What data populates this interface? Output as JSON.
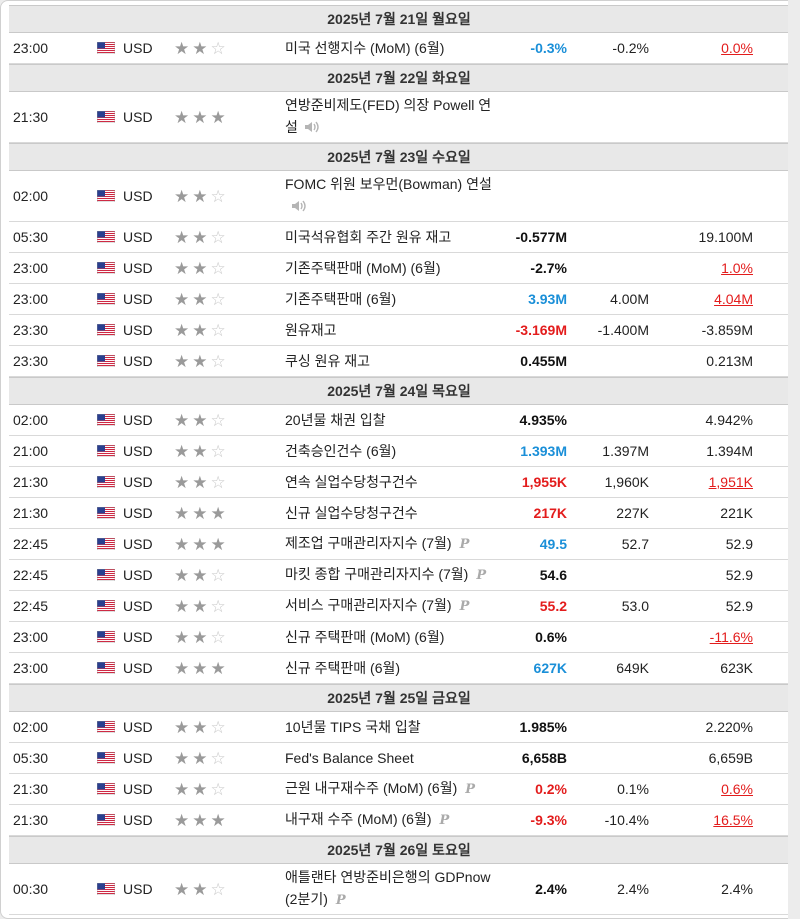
{
  "colors": {
    "negative": "#e31c1c",
    "positive": "#1a8fd8",
    "neutral": "#111111",
    "day_header_bg": "#e8e8e8"
  },
  "days": [
    {
      "header": "2025년 7월 21일 월요일",
      "events": [
        {
          "time": "23:00",
          "currency": "USD",
          "importance": 2,
          "event": "미국 선행지수 (MoM) (6월)",
          "actual": "-0.3%",
          "actual_color": "pos",
          "forecast": "-0.2%",
          "previous": "0.0%",
          "previous_revised": true
        }
      ]
    },
    {
      "header": "2025년 7월 22일 화요일",
      "events": [
        {
          "time": "21:30",
          "currency": "USD",
          "importance": 3,
          "event": "연방준비제도(FED) 의장 Powell 연설",
          "speech": true,
          "actual": "",
          "forecast": "",
          "previous": ""
        }
      ]
    },
    {
      "header": "2025년 7월 23일 수요일",
      "events": [
        {
          "time": "02:00",
          "currency": "USD",
          "importance": 2,
          "event": "FOMC 위원 보우먼(Bowman) 연설",
          "speech": true,
          "actual": "",
          "forecast": "",
          "previous": ""
        },
        {
          "time": "05:30",
          "currency": "USD",
          "importance": 2,
          "event": "미국석유협회 주간 원유 재고",
          "actual": "-0.577M",
          "actual_color": "neu",
          "forecast": "",
          "previous": "19.100M"
        },
        {
          "time": "23:00",
          "currency": "USD",
          "importance": 2,
          "event": "기존주택판매 (MoM) (6월)",
          "actual": "-2.7%",
          "actual_color": "neu",
          "forecast": "",
          "previous": "1.0%",
          "previous_revised": true
        },
        {
          "time": "23:00",
          "currency": "USD",
          "importance": 2,
          "event": "기존주택판매 (6월)",
          "actual": "3.93M",
          "actual_color": "pos",
          "forecast": "4.00M",
          "previous": "4.04M",
          "previous_revised": true
        },
        {
          "time": "23:30",
          "currency": "USD",
          "importance": 2,
          "event": "원유재고",
          "actual": "-3.169M",
          "actual_color": "neg",
          "forecast": "-1.400M",
          "previous": "-3.859M"
        },
        {
          "time": "23:30",
          "currency": "USD",
          "importance": 2,
          "event": "쿠싱 원유 재고",
          "actual": "0.455M",
          "actual_color": "neu",
          "forecast": "",
          "previous": "0.213M"
        }
      ]
    },
    {
      "header": "2025년 7월 24일 목요일",
      "events": [
        {
          "time": "02:00",
          "currency": "USD",
          "importance": 2,
          "event": "20년물 채권 입찰",
          "actual": "4.935%",
          "actual_color": "neu",
          "forecast": "",
          "previous": "4.942%"
        },
        {
          "time": "21:00",
          "currency": "USD",
          "importance": 2,
          "event": "건축승인건수 (6월)",
          "actual": "1.393M",
          "actual_color": "pos",
          "forecast": "1.397M",
          "previous": "1.394M"
        },
        {
          "time": "21:30",
          "currency": "USD",
          "importance": 2,
          "event": "연속 실업수당청구건수",
          "actual": "1,955K",
          "actual_color": "neg",
          "forecast": "1,960K",
          "previous": "1,951K",
          "previous_revised": true
        },
        {
          "time": "21:30",
          "currency": "USD",
          "importance": 3,
          "event": "신규 실업수당청구건수",
          "actual": "217K",
          "actual_color": "neg",
          "forecast": "227K",
          "previous": "221K"
        },
        {
          "time": "22:45",
          "currency": "USD",
          "importance": 3,
          "event": "제조업 구매관리자지수 (7월)",
          "prelim": true,
          "actual": "49.5",
          "actual_color": "pos",
          "forecast": "52.7",
          "previous": "52.9"
        },
        {
          "time": "22:45",
          "currency": "USD",
          "importance": 2,
          "event": "마킷 종합 구매관리자지수 (7월)",
          "prelim": true,
          "actual": "54.6",
          "actual_color": "neu",
          "forecast": "",
          "previous": "52.9"
        },
        {
          "time": "22:45",
          "currency": "USD",
          "importance": 2,
          "event": "서비스 구매관리자지수 (7월)",
          "prelim": true,
          "actual": "55.2",
          "actual_color": "neg",
          "forecast": "53.0",
          "previous": "52.9"
        },
        {
          "time": "23:00",
          "currency": "USD",
          "importance": 2,
          "event": "신규 주택판매 (MoM) (6월)",
          "actual": "0.6%",
          "actual_color": "neu",
          "forecast": "",
          "previous": "-11.6%",
          "previous_revised": true
        },
        {
          "time": "23:00",
          "currency": "USD",
          "importance": 3,
          "event": "신규 주택판매 (6월)",
          "actual": "627K",
          "actual_color": "pos",
          "forecast": "649K",
          "previous": "623K"
        }
      ]
    },
    {
      "header": "2025년 7월 25일 금요일",
      "events": [
        {
          "time": "02:00",
          "currency": "USD",
          "importance": 2,
          "event": "10년물 TIPS 국채 입찰",
          "actual": "1.985%",
          "actual_color": "neu",
          "forecast": "",
          "previous": "2.220%"
        },
        {
          "time": "05:30",
          "currency": "USD",
          "importance": 2,
          "event": "Fed's Balance Sheet",
          "actual": "6,658B",
          "actual_color": "neu",
          "forecast": "",
          "previous": "6,659B"
        },
        {
          "time": "21:30",
          "currency": "USD",
          "importance": 2,
          "event": "근원 내구재수주 (MoM) (6월)",
          "prelim": true,
          "actual": "0.2%",
          "actual_color": "neg",
          "forecast": "0.1%",
          "previous": "0.6%",
          "previous_revised": true
        },
        {
          "time": "21:30",
          "currency": "USD",
          "importance": 3,
          "event": "내구재 수주 (MoM) (6월)",
          "prelim": true,
          "actual": "-9.3%",
          "actual_color": "neg",
          "forecast": "-10.4%",
          "previous": "16.5%",
          "previous_revised": true
        }
      ]
    },
    {
      "header": "2025년 7월 26일 토요일",
      "events": [
        {
          "time": "00:30",
          "currency": "USD",
          "importance": 2,
          "event": "애틀랜타 연방준비은행의 GDPnow (2분기)",
          "prelim": true,
          "actual": "2.4%",
          "actual_color": "neu",
          "forecast": "2.4%",
          "previous": "2.4%"
        }
      ]
    }
  ]
}
